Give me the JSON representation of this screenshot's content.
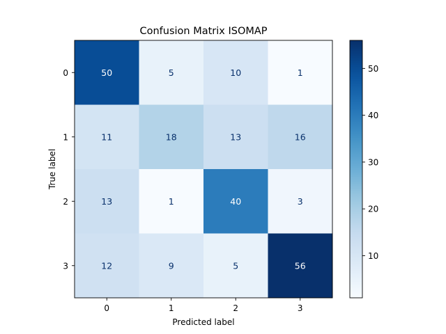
{
  "chart_data": {
    "type": "heatmap",
    "title": "Confusion Matrix ISOMAP",
    "xlabel": "Predicted label",
    "ylabel": "True label",
    "x_categories": [
      "0",
      "1",
      "2",
      "3"
    ],
    "y_categories": [
      "0",
      "1",
      "2",
      "3"
    ],
    "values": [
      [
        50,
        5,
        10,
        1
      ],
      [
        11,
        18,
        13,
        16
      ],
      [
        13,
        1,
        40,
        3
      ],
      [
        12,
        9,
        5,
        56
      ]
    ],
    "colormap": "Blues",
    "color_range": [
      1,
      56
    ],
    "colorbar_ticks": [
      10,
      20,
      30,
      40,
      50
    ],
    "colorbar_tick_labels": [
      "10",
      "20",
      "30",
      "40",
      "50"
    ]
  }
}
